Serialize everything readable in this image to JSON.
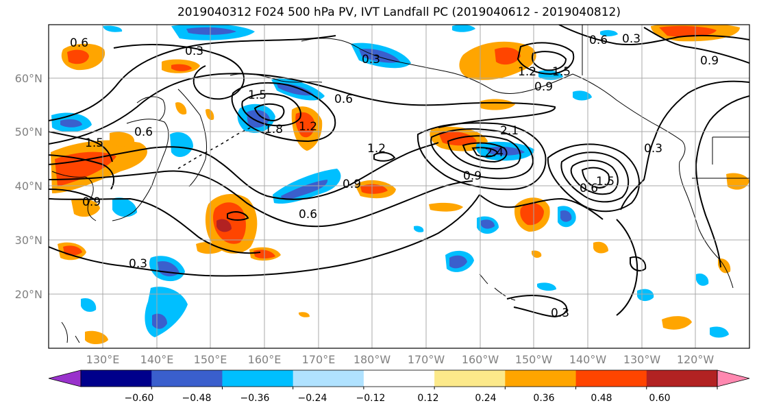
{
  "title": "2019040312 F024 500 hPa PV, IVT Landfall PC (2019040612 - 2019040812)",
  "lat_labels": [
    "60°N",
    "50°N",
    "40°N",
    "30°N",
    "20°N"
  ],
  "lon_labels": [
    "130°E",
    "140°E",
    "150°E",
    "160°E",
    "170°E",
    "180°W",
    "170°W",
    "160°W",
    "150°W",
    "140°W",
    "130°W",
    "120°W"
  ],
  "colorbar": {
    "ticks": [
      "−0.60",
      "−0.48",
      "−0.36",
      "−0.24",
      "−0.12",
      "0.12",
      "0.24",
      "0.36",
      "0.48",
      "0.60"
    ],
    "colors": [
      "#9932cc",
      "#00008b",
      "#3a5fcd",
      "#00bfff",
      "#b0e2ff",
      "#ffffff",
      "#fce98a",
      "#ffa500",
      "#ff4500",
      "#b22222",
      "#ff88b0"
    ],
    "extend": "both"
  },
  "contour_labels": [
    "0.3",
    "0.3",
    "0.3",
    "0.3",
    "0.3",
    "0.3",
    "0.6",
    "0.6",
    "0.6",
    "0.6",
    "0.6",
    "0.6",
    "0.9",
    "0.9",
    "0.9",
    "0.9",
    "0.9",
    "1.2",
    "1.2",
    "1.2",
    "1.5",
    "1.5",
    "1.5",
    "1.5",
    "1.8",
    "2.1",
    "2.4"
  ],
  "grid": true,
  "fill_variable": "500 hPa PV",
  "contour_variable": "IVT Landfall PC"
}
